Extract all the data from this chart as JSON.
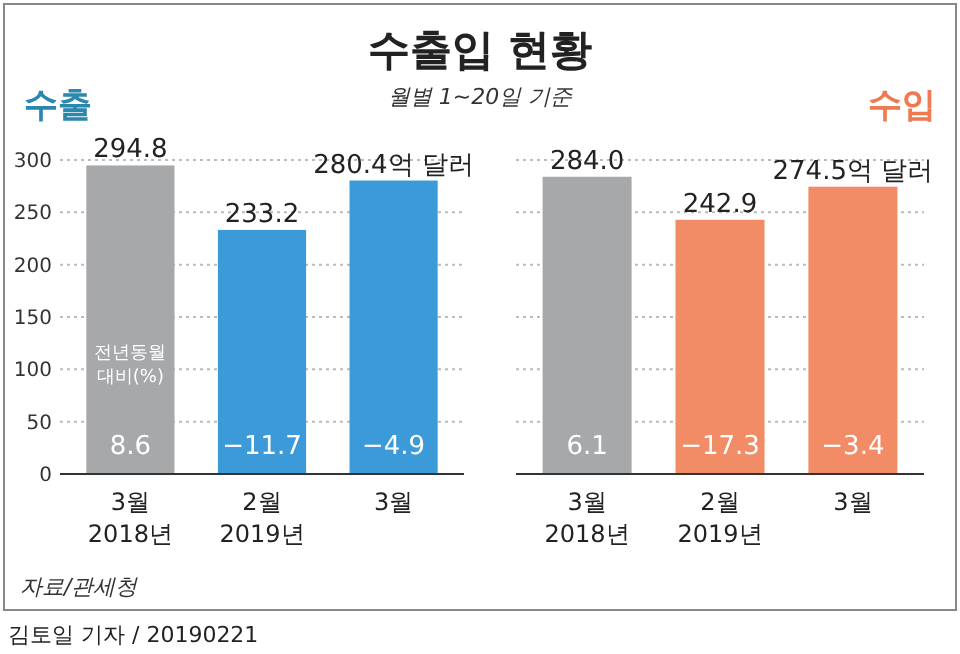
{
  "chart_data": [
    {
      "type": "other",
      "title": "수출입 현황",
      "subtitle": "월별 1~20일 기준",
      "annotations": [
        "자료/관세청",
        "김토일 기자 / 20190221"
      ]
    },
    {
      "type": "bar",
      "title": "수출",
      "categories": [
        "3월 2018년",
        "2월 2019년",
        "3월"
      ],
      "values": [
        294.8,
        233.2,
        280.4
      ],
      "colors": [
        "#a7a8aa",
        "#3d9ad8",
        "#3d9ad8"
      ],
      "value_labels": [
        "294.8",
        "233.2",
        "280.4억 달러"
      ],
      "ylim": [
        0,
        300
      ],
      "yticks": [
        0,
        50,
        100,
        150,
        200,
        250,
        300
      ],
      "grid": "y",
      "annotations": [
        "전년동월 대비(%)",
        "8.6",
        "−11.7",
        "−4.9"
      ]
    },
    {
      "type": "bar",
      "title": "수입",
      "categories": [
        "3월 2018년",
        "2월 2019년",
        "3월"
      ],
      "values": [
        284.0,
        242.9,
        274.5
      ],
      "colors": [
        "#a7a8aa",
        "#f28c66",
        "#f28c66"
      ],
      "value_labels": [
        "284.0",
        "242.9",
        "274.5억 달러"
      ],
      "ylim": [
        0,
        300
      ],
      "yticks": [
        0,
        50,
        100,
        150,
        200,
        250,
        300
      ],
      "grid": "y",
      "tick_labels": "x",
      "annotations": [
        "6.1",
        "−17.3",
        "−3.4"
      ]
    }
  ]
}
